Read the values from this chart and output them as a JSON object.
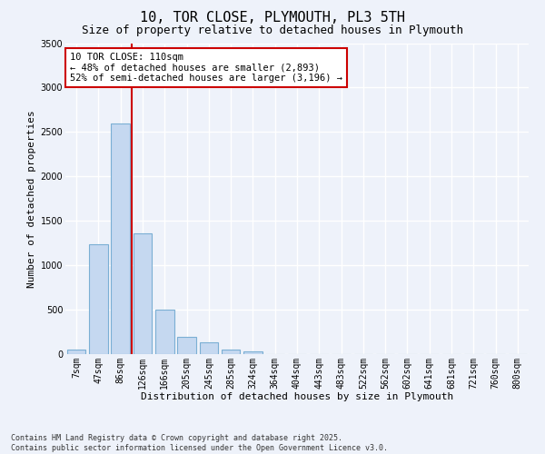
{
  "title": "10, TOR CLOSE, PLYMOUTH, PL3 5TH",
  "subtitle": "Size of property relative to detached houses in Plymouth",
  "xlabel": "Distribution of detached houses by size in Plymouth",
  "ylabel": "Number of detached properties",
  "categories": [
    "7sqm",
    "47sqm",
    "86sqm",
    "126sqm",
    "166sqm",
    "205sqm",
    "245sqm",
    "285sqm",
    "324sqm",
    "364sqm",
    "404sqm",
    "443sqm",
    "483sqm",
    "522sqm",
    "562sqm",
    "602sqm",
    "641sqm",
    "681sqm",
    "721sqm",
    "760sqm",
    "800sqm"
  ],
  "bar_values": [
    50,
    1240,
    2600,
    1360,
    500,
    195,
    135,
    50,
    30,
    0,
    0,
    0,
    0,
    0,
    0,
    0,
    0,
    0,
    0,
    0,
    0
  ],
  "bar_color": "#c5d8f0",
  "bar_edge_color": "#7bafd4",
  "background_color": "#eef2fa",
  "grid_color": "#ffffff",
  "ylim": [
    0,
    3500
  ],
  "yticks": [
    0,
    500,
    1000,
    1500,
    2000,
    2500,
    3000,
    3500
  ],
  "vline_x_index": 2,
  "vline_color": "#cc0000",
  "annotation_text": "10 TOR CLOSE: 110sqm\n← 48% of detached houses are smaller (2,893)\n52% of semi-detached houses are larger (3,196) →",
  "annotation_box_color": "#ffffff",
  "annotation_box_edge": "#cc0000",
  "footer_text": "Contains HM Land Registry data © Crown copyright and database right 2025.\nContains public sector information licensed under the Open Government Licence v3.0.",
  "title_fontsize": 11,
  "subtitle_fontsize": 9,
  "label_fontsize": 8,
  "tick_fontsize": 7,
  "annotation_fontsize": 7.5,
  "footer_fontsize": 6
}
